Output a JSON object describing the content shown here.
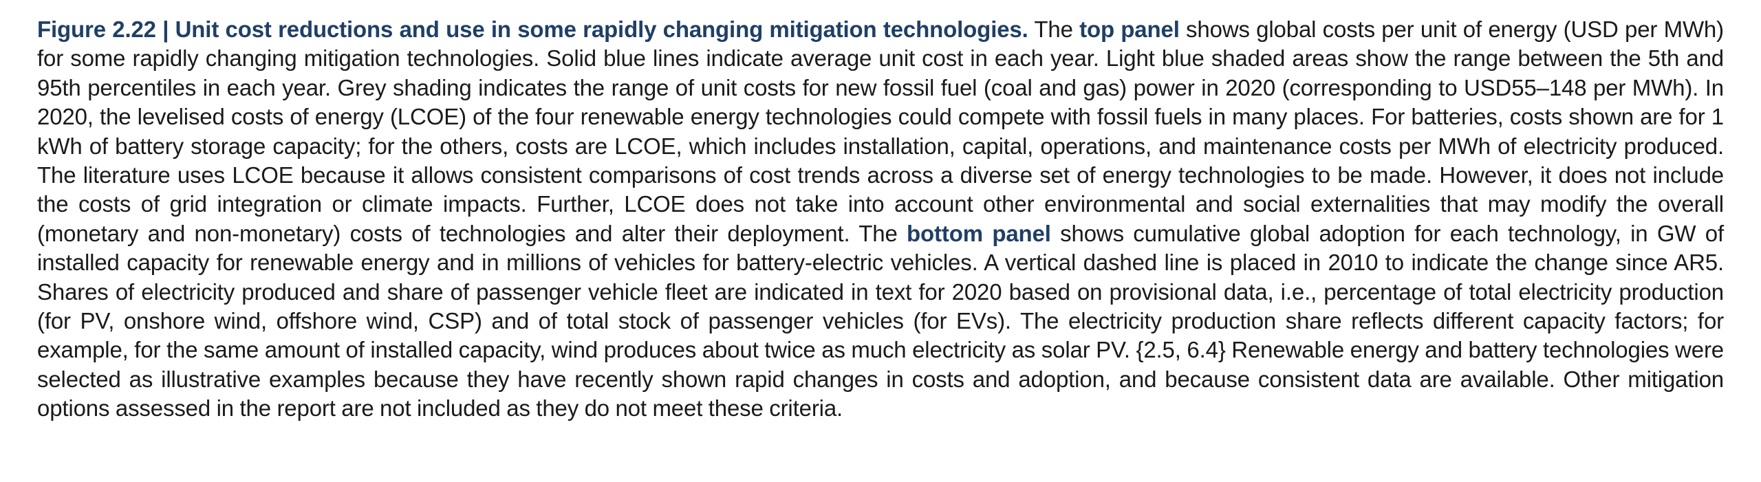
{
  "caption": {
    "label": "Figure 2.22 | Unit cost reductions and use in some rapidly changing mitigation technologies.",
    "seg1": " The ",
    "kw1": "top panel",
    "seg2": " shows global costs per unit of energy (USD per MWh) for some rapidly changing mitigation technologies. Solid blue lines indicate average unit cost in each year. Light blue shaded areas show the range between the 5th and 95th percentiles in each year. Grey shading indicates the range of unit costs for new fossil fuel (coal and gas) power in 2020 (corresponding to USD55–148 per MWh). In 2020, the levelised costs of energy (LCOE) of the four renewable energy technologies could compete with fossil fuels in many places. For batteries, costs shown are for 1 kWh of battery storage capacity; for the others, costs are LCOE, which includes installation, capital, operations, and maintenance costs per MWh of electricity produced. The literature uses LCOE because it allows consistent comparisons of cost trends across a diverse set of energy technologies to be made. However, it does not include the costs of grid integration or climate impacts. Further, LCOE does not take into account other environmental and social externalities that may modify the overall (monetary and non-monetary) costs of technologies and alter their deployment. The ",
    "kw2": "bottom panel",
    "seg3": " shows cumulative global adoption for each technology, in GW of installed capacity for renewable energy and in millions of vehicles for battery-electric vehicles. A vertical dashed line is placed in 2010 to indicate the change since AR5. Shares of electricity produced and share of passenger vehicle fleet are indicated in text for 2020 based on provisional data, i.e., percentage of total electricity production (for PV, onshore wind, offshore wind, CSP) and of total stock of passenger vehicles (for EVs). The electricity production share reflects different capacity factors; for example, for the same amount of installed capacity, wind produces about twice as much electricity as solar PV. {2.5, 6.4} Renewable energy and battery technologies were selected as illustrative examples because they have recently shown rapid changes in costs and adoption, and because consistent data are available. Other mitigation options assessed in the report are not included as they do not meet these criteria."
  },
  "colors": {
    "accent": "#1f3f66",
    "text": "#1a1a1a"
  }
}
